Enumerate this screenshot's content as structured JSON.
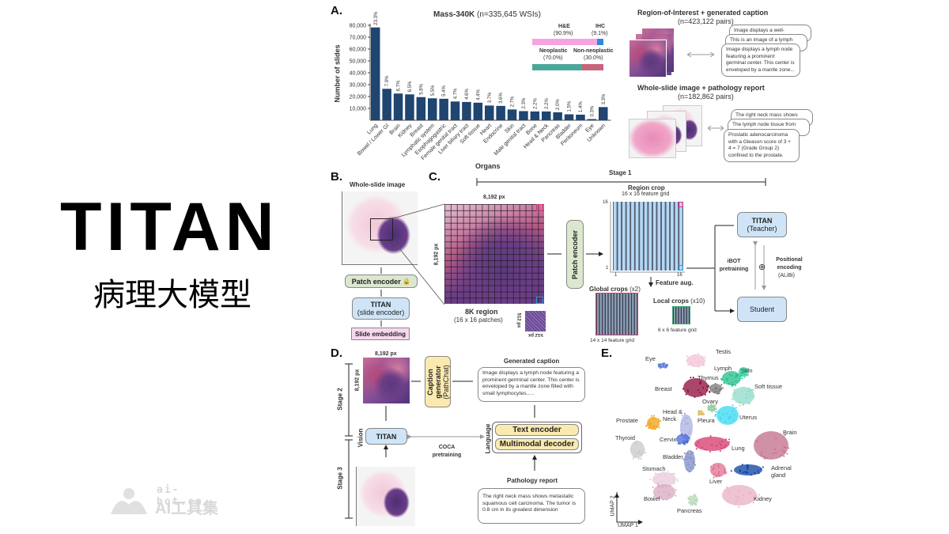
{
  "title": {
    "main": "TITAN",
    "subtitle": "病理大模型"
  },
  "watermark": {
    "url": "ai-bot.cn",
    "name": "AI工具集"
  },
  "panel_a": {
    "letter": "A.",
    "inset": {
      "he_label": "H&E",
      "he_pct": "(90.9%)",
      "ihc_label": "IHC",
      "ihc_pct": "(9.1%)",
      "neo_label": "Neoplastic",
      "neo_pct": "(70.0%)",
      "nonneo_label": "Non-neoplastic",
      "nonneo_pct": "(30.0%)",
      "he_value": 90.9,
      "neo_value": 70.0,
      "colors": {
        "he": "#f7a3e0",
        "ihc": "#2a8ae0",
        "neo": "#4aa89a",
        "nonneo": "#c9637a"
      }
    },
    "roi": {
      "title": "Region-of-Interest + generated caption",
      "count": "(n=423,122 pairs)",
      "captions": [
        "Image displays a well-",
        "This is an image of a lymph",
        "Image displays a lymph node featuring a prominent germinal center. This center is enveloped by a mantle zone..."
      ]
    },
    "wsi_report": {
      "title": "Whole-slide image + pathology report",
      "count": "(n=182,862 pairs)",
      "captions": [
        "The right neck mass shows",
        "The lymph node tissue from",
        "Prostatic adenocarcinoma with a Gleason score of 3 + 4 = 7 (Grade Group 2) confined to the prostate."
      ]
    }
  },
  "chart_data": {
    "type": "bar",
    "title": "Mass-340K",
    "subtitle": "(n=335,645 WSIs)",
    "xlabel": "Organs",
    "ylabel": "Number of slides",
    "ylim": [
      0,
      80000
    ],
    "yticks": [
      "10,000",
      "20,000",
      "30,000",
      "40,000",
      "50,000",
      "60,000",
      "70,000",
      "80,000"
    ],
    "categories": [
      "Lung",
      "Bowel / Lower GI",
      "Brain",
      "Kidney",
      "Breast",
      "Lymphatic system",
      "Esophagogastric",
      "Female genital tract",
      "Liver biliary tract",
      "Soft tissue",
      "Heart",
      "Endocrine",
      "Skin",
      "Male genital tract",
      "Bone",
      "Head & Neck",
      "Pancreas",
      "Bladder",
      "Peritoneum",
      "Eye",
      "Unknown"
    ],
    "values": [
      78200,
      26500,
      22500,
      21800,
      19500,
      18500,
      18100,
      15800,
      15400,
      14800,
      12400,
      12100,
      9100,
      7700,
      7400,
      7400,
      6700,
      5000,
      4700,
      1000,
      11100
    ],
    "data_labels": [
      "23.3%",
      "7.9%",
      "6.7%",
      "6.5%",
      "5.8%",
      "5.5%",
      "5.4%",
      "4.7%",
      "4.6%",
      "4.4%",
      "3.7%",
      "3.6%",
      "2.7%",
      "2.3%",
      "2.2%",
      "2.2%",
      "2.0%",
      "1.5%",
      "1.4%",
      "0.3%",
      "3.3%"
    ],
    "bar_color": "#1f4570",
    "grid": false
  },
  "panel_b": {
    "letter": "B.",
    "wsi_title": "Whole-slide image",
    "patch_encoder": "Patch encoder",
    "titan": "TITAN",
    "titan_sub": "(slide encoder)",
    "slide_embedding": "Slide embedding"
  },
  "panel_c": {
    "letter": "C.",
    "stage": "Stage 1",
    "px_top": "8,192 px",
    "px_side": "8,192 px",
    "region": "8K region",
    "region_sub": "(16 x 16 patches)",
    "patch_px_a": "512 px",
    "patch_px_b": "512 px",
    "patch_encoder": "Patch encoder",
    "region_crop": "Region crop",
    "region_grid": "16 x 16 feature grid",
    "axis_16": "16",
    "axis_1": "1",
    "feature_aug": "Feature aug.",
    "global_crops": "Global crops",
    "global_count": "(x2)",
    "global_grid": "14 x 14 feature grid",
    "local_crops": "Local crops",
    "local_count": "(x10)",
    "local_grid": "6 x 6 feature grid",
    "teacher": "TITAN",
    "teacher_sub": "(Teacher)",
    "student": "Student",
    "ibot": "iBOT pretraining",
    "posenc": "Positional encoding",
    "posenc_sub": "(ALiBi)"
  },
  "panel_d": {
    "letter": "D.",
    "stage2": "Stage 2",
    "stage3": "Stage 3",
    "px_top": "8,192 px",
    "px_side": "8,192 px",
    "caption_gen": "Caption generator",
    "caption_gen_sub": "(PathChat)",
    "gen_caption_title": "Generated caption",
    "gen_caption": "Image displays a lymph node featuring a prominent germinal center. This center is enveloped by a mantle zone filled with small lymphocytes.....",
    "vision": "Vision",
    "language": "Language",
    "titan": "TITAN",
    "coca": "COCA pretraining",
    "text_encoder": "Text encoder",
    "mm_decoder": "Multimodal decoder",
    "report_title": "Pathology report",
    "report": "The right neck mass shows metastatic squamous cell carcinoma. The tumor is 0.8 cm in its greatest dimension"
  },
  "panel_e": {
    "letter": "E.",
    "xaxis": "UMAP 1",
    "yaxis": "UMAP 2",
    "clusters": [
      {
        "label": "Testis",
        "color": "#f3c2d8"
      },
      {
        "label": "Eye",
        "color": "#5b7bd5"
      },
      {
        "label": "Lymph",
        "color": "#1dbf8a"
      },
      {
        "label": "Skin",
        "color": "#2fd0a0"
      },
      {
        "label": "Thymus",
        "color": "#777777"
      },
      {
        "label": "Breast",
        "color": "#8b0a3a"
      },
      {
        "label": "Soft tissue",
        "color": "#8fd9c9"
      },
      {
        "label": "Ovary",
        "color": "#8fcb9b"
      },
      {
        "label": "Head & Neck",
        "color": "#aab0e0"
      },
      {
        "label": "Pleura",
        "color": "#e0c070"
      },
      {
        "label": "Uterus",
        "color": "#35d8ef"
      },
      {
        "label": "Prostate",
        "color": "#f0a010"
      },
      {
        "label": "Brain",
        "color": "#c06c88"
      },
      {
        "label": "Thyroid",
        "color": "#c8c8c8"
      },
      {
        "label": "Cervix",
        "color": "#4a68d8"
      },
      {
        "label": "Lung",
        "color": "#d4386a"
      },
      {
        "label": "Bladder",
        "color": "#7e8bc8"
      },
      {
        "label": "Adrenal gland",
        "color": "#0a3fa0"
      },
      {
        "label": "Stomach",
        "color": "#e8cad8"
      },
      {
        "label": "Liver",
        "color": "#e07090"
      },
      {
        "label": "Bowel",
        "color": "#d8a8c0"
      },
      {
        "label": "Kidney",
        "color": "#e8b0c0"
      },
      {
        "label": "Pancreas",
        "color": "#b8d8b8"
      }
    ]
  }
}
